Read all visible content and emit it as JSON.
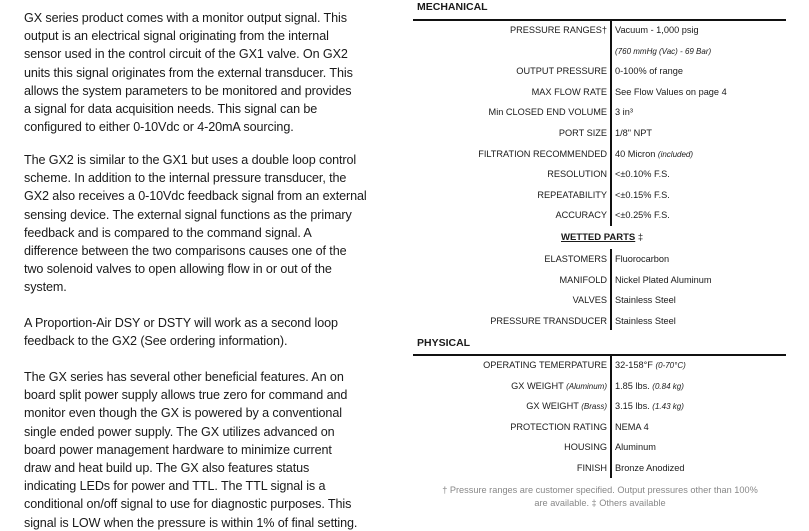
{
  "body_text": {
    "paragraphs": [
      [
        "GX series product comes with a monitor output signal. This",
        "output is an electrical signal originating from the internal",
        "sensor used in the control circuit of the GX1 valve. On GX2",
        "units this signal originates from the external transducer. This",
        "allows the system parameters to be monitored and provides",
        "a signal for data acquisition needs. This signal can be",
        "configured to either 0-10Vdc or 4-20mA sourcing."
      ],
      [
        "The GX2 is similar to the GX1 but uses a double loop control",
        "scheme. In addition to the internal pressure transducer, the",
        "GX2 also receives a 0-10Vdc feedback signal from an external",
        "sensing device. The external signal functions as the primary",
        "feedback and is compared to the command signal. A",
        "difference between the two comparisons causes one of the",
        "two solenoid valves to open allowing flow in or out of the",
        "system."
      ],
      [
        "A Proportion-Air DSY or DSTY will work as a second loop",
        "feedback to the GX2 (See ordering information)."
      ],
      [
        "The GX series has several other beneficial features. An on",
        "board split power supply allows true zero for command and",
        "monitor even though the GX is powered by a conventional",
        "single ended power supply. The GX utilizes advanced on",
        "board power management hardware to minimize current",
        "draw and heat build up. The GX also features status",
        "indicating LEDs for power and TTL. The TTL signal is a",
        "conditional on/off signal to use for diagnostic purposes. This",
        "signal is LOW when the pressure is within 1% of final setting."
      ]
    ]
  },
  "specs": {
    "mechanical": {
      "title": "MECHANICAL",
      "rows": [
        {
          "label": "PRESSURE RANGES†",
          "value": "Vacuum - 1,000 psig"
        },
        {
          "label": "",
          "value": "",
          "value_note": "(760 mmHg (Vac) - 69 Bar)"
        },
        {
          "label": "OUTPUT PRESSURE",
          "value": "0-100% of range"
        },
        {
          "label": "MAX FLOW RATE",
          "value": "See Flow Values on page 4"
        },
        {
          "label": "Min CLOSED END VOLUME",
          "value": "3 in³"
        },
        {
          "label": "PORT SIZE",
          "value": "1/8\" NPT"
        },
        {
          "label": "FILTRATION RECOMMENDED",
          "value": "40 Micron ",
          "value_note": "(included)"
        },
        {
          "label": "RESOLUTION",
          "value": "<±0.10% F.S."
        },
        {
          "label": "REPEATABILITY",
          "value": "<±0.15% F.S."
        },
        {
          "label": "ACCURACY",
          "value": "<±0.25% F.S."
        }
      ]
    },
    "wetted": {
      "title": "WETTED PARTS",
      "title_mark": " ‡",
      "rows": [
        {
          "label": "ELASTOMERS",
          "value": "Fluorocarbon"
        },
        {
          "label": "MANIFOLD",
          "value": "Nickel Plated Aluminum"
        },
        {
          "label": "VALVES",
          "value": "Stainless Steel"
        },
        {
          "label": "PRESSURE TRANSDUCER",
          "value": "Stainless Steel"
        }
      ]
    },
    "physical": {
      "title": "PHYSICAL",
      "rows": [
        {
          "label": "OPERATING TEMERPATURE",
          "value": "32-158°F ",
          "value_note": "(0-70°C)"
        },
        {
          "label": "GX WEIGHT ",
          "label_note": "(Aluminum)",
          "value": "1.85 lbs. ",
          "value_note": "(0.84 kg)"
        },
        {
          "label": "GX WEIGHT ",
          "label_note": "(Brass)",
          "value": "3.15 lbs. ",
          "value_note": "(1.43 kg)"
        },
        {
          "label": "PROTECTION RATING",
          "value": "NEMA 4"
        },
        {
          "label": "HOUSING",
          "value": "Aluminum"
        },
        {
          "label": "FINISH",
          "value": "Bronze Anodized"
        }
      ]
    },
    "footnote": [
      "† Pressure ranges are customer specified. Output pressures other than 100%",
      "are available. ‡ Others available"
    ]
  }
}
